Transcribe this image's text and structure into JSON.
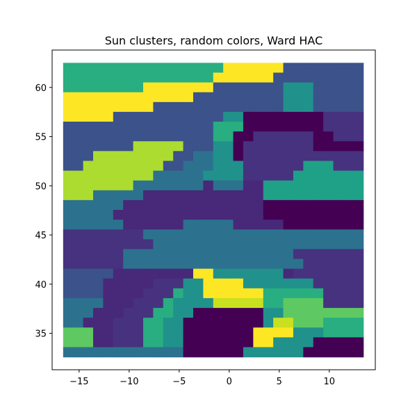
{
  "chart_data": {
    "type": "heatmap",
    "title": "Sun clusters, random colors, Ward HAC",
    "xlabel": "",
    "ylabel": "",
    "xlim": [
      -17.7,
      14.6
    ],
    "ylim": [
      31.3,
      63.8
    ],
    "xticks": [
      -15,
      -10,
      -5,
      0,
      5,
      10
    ],
    "yticks": [
      35,
      40,
      45,
      50,
      55,
      60
    ],
    "x_range": [
      -16.6,
      13.4
    ],
    "y_range": [
      32.6,
      62.5
    ],
    "grid": false,
    "legend": "none",
    "palette": {
      "A": "#440154",
      "B": "#46327e",
      "C": "#3b528b",
      "D": "#2c728e",
      "E": "#21918c",
      "F": "#28ae80",
      "G": "#5ec962",
      "H": "#addc30",
      "I": "#fde725",
      "J": "#482878",
      "K": "#1fa187",
      "L": "#c8e020"
    },
    "grid_cols": 30,
    "grid_rows": 30,
    "rows": [
      "FFFFFFFFFFFFFFFFIIIIIICCCCCCCC",
      "FFFFFFFFFFFFFFFIIIIIICCCCCCCCC",
      "FFFFFFFFIIIIIIICCCCCCCEEECCCCC",
      "IIIIIIIIIIIIICCCCCCCCCEEECCCCC",
      "IIIIIIIIICCCCCCCCCCCCCEEECCCCC",
      "IIIIICCCCCCCCCCCEEAAAAAAAABBBB",
      "CCCCCCCCCCCCCCCFFFAAAAAAAABBBB",
      "CCCCCCCCCCCCCCCFFAABBBBBBAABBB",
      "CCCCCCCHHHHHCCCEEABBBBBBBAAAAA",
      "CCCHHHHHHHHCCDDEEABBBBBBBBBBBB",
      "CCHHHHHHHHCCDDDEEEBBBBBBKKKBBB",
      "HHHHHHHHHDDDDDEEEEBBBBBKKKKKKK",
      "HHHHHHHDDDDDDDJDDDJJKKKKKKKKKK",
      "HHHDDDDDJJJJJJJJJJJJKKKKKKKKKK",
      "DDDDDDJJJJJJJJJJJJJJAAAAAAAAAA",
      "DDDDDJJJJJJJJJJJJJJJAAAAAAAAAA",
      "DDDDDDJJJJJJDDDDDJJJJJAAAAAAAA",
      "BBBBBBBBDDDDDDDDDDDDDDDDDDDDDD",
      "BBBBBBBBBDDDDDDDDDDDDDDDDDDDDD",
      "BBBBBBDDDDDDDDDDDDDDDDDBBBBBBB",
      "BBBBBBDDDDDDDDDDDDDDDDDDBBBBBB",
      "CCCCCJJJJJJJJIIEEEEEEEJBBBBBBB",
      "CCCCJJJJJBBBEEIIIIEEEEEEEBBBBB",
      "CCCCJJJJBBBFEEIIIIIIFFFFFFBBBB",
      "DDDDJJJBBBFEEEELLLLLFFGGGGBBBB",
      "DDDJJJBBBFFEEAAAAAAAEEGGGGGGGG",
      "DDJJJBBBFFEEAAAAAAAAELLGGGFFFF",
      "GGGJJBBBFFEEAAAAAAAIIIIEEEFFFF",
      "GGGJJBBBFFEEAAAAAAAIIEEEEAAAAA",
      "DDDDDDDDDDDDAAAAAAEEEEEEAAAAAA"
    ]
  }
}
